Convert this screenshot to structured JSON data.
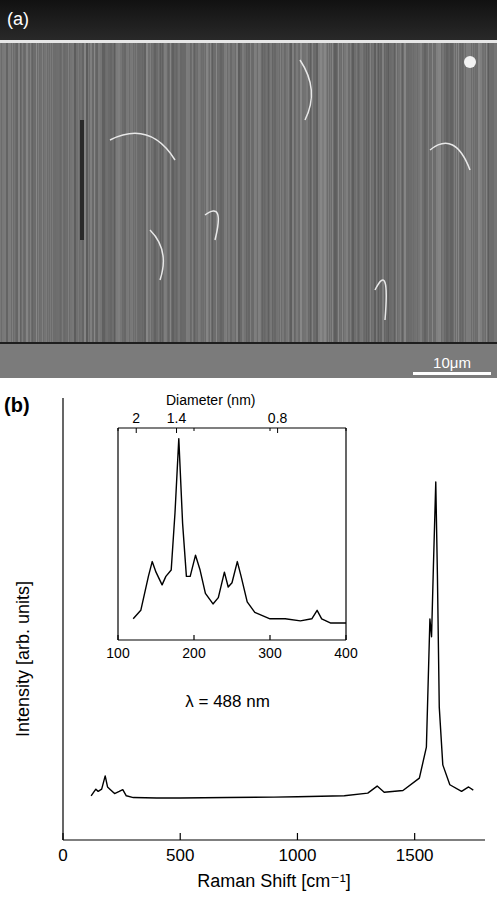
{
  "image": {
    "label": "(a)",
    "scale_bar": "10μm"
  },
  "chart_data": [
    {
      "type": "line",
      "panel": "(b)",
      "x_label": "Raman Shift [cm⁻¹]",
      "y_label": "Intensity [arb. units]",
      "annotation": "λ = 488 nm",
      "color": "#000000",
      "x": [
        120,
        140,
        150,
        165,
        180,
        190,
        200,
        220,
        240,
        255,
        270,
        300,
        400,
        500,
        700,
        900,
        1000,
        1200,
        1300,
        1340,
        1370,
        1450,
        1520,
        1550,
        1565,
        1572,
        1580,
        1590,
        1597,
        1605,
        1620,
        1650,
        1700,
        1730,
        1750
      ],
      "values": [
        0.1,
        0.115,
        0.11,
        0.115,
        0.145,
        0.12,
        0.115,
        0.105,
        0.11,
        0.114,
        0.1,
        0.096,
        0.095,
        0.095,
        0.096,
        0.097,
        0.098,
        0.1,
        0.106,
        0.122,
        0.108,
        0.112,
        0.14,
        0.21,
        0.5,
        0.46,
        0.62,
        0.81,
        0.6,
        0.3,
        0.17,
        0.125,
        0.11,
        0.12,
        0.113
      ],
      "xlim": [
        0,
        1800
      ],
      "xticks": [
        0,
        500,
        1000,
        1500
      ],
      "ylim": [
        0,
        1
      ],
      "tick_labels": "x"
    },
    {
      "type": "line",
      "color": "#000000",
      "x2label": "Diameter (nm)",
      "x": [
        120,
        130,
        140,
        145,
        150,
        158,
        163,
        170,
        175,
        180,
        185,
        190,
        195,
        202,
        208,
        215,
        225,
        232,
        240,
        245,
        250,
        257,
        262,
        270,
        280,
        300,
        320,
        340,
        355,
        362,
        368,
        380,
        400
      ],
      "values": [
        0.1,
        0.14,
        0.3,
        0.37,
        0.32,
        0.26,
        0.3,
        0.33,
        0.6,
        0.95,
        0.55,
        0.3,
        0.3,
        0.4,
        0.33,
        0.22,
        0.17,
        0.2,
        0.32,
        0.25,
        0.27,
        0.37,
        0.3,
        0.18,
        0.13,
        0.1,
        0.1,
        0.09,
        0.1,
        0.14,
        0.1,
        0.08,
        0.08
      ],
      "xlim": [
        100,
        400
      ],
      "xticks": [
        100,
        200,
        300,
        400
      ],
      "x2ticks": [
        {
          "value": 124,
          "label": "2"
        },
        {
          "value": 177,
          "label": "1.4"
        },
        {
          "value": 310,
          "label": "0.8"
        }
      ],
      "ylim": [
        0,
        1
      ],
      "tick_labels": "x"
    }
  ]
}
